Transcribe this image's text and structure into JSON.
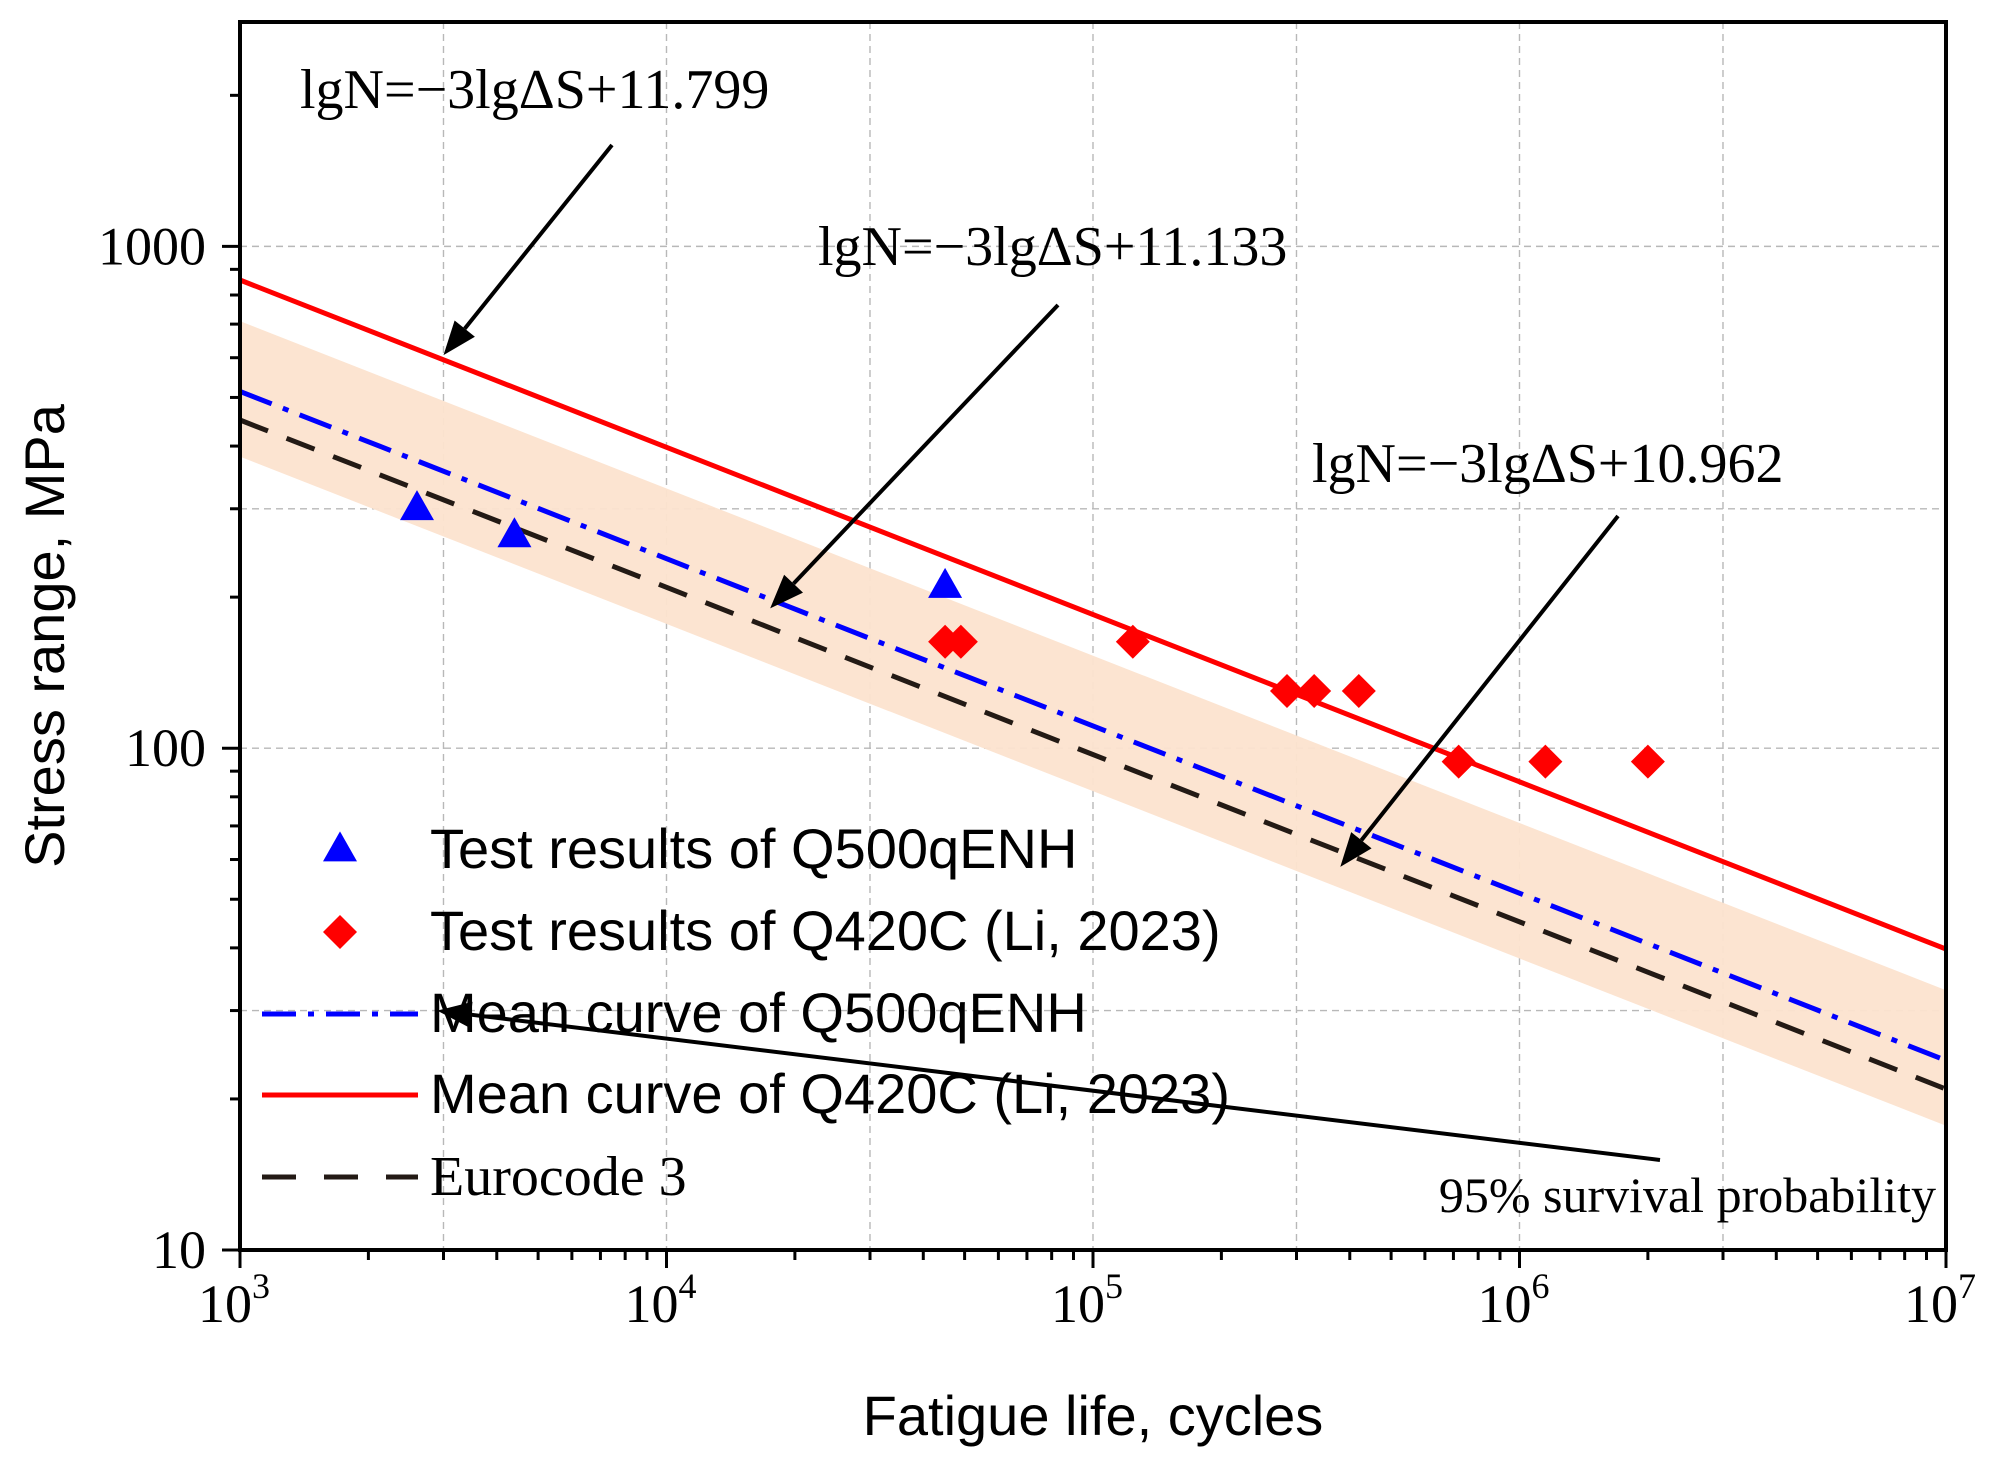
{
  "chart_data": {
    "type": "scatter",
    "scale": {
      "x": "log",
      "y": "log"
    },
    "xlim": [
      1000,
      10000000
    ],
    "ylim": [
      10,
      2800
    ],
    "xlabel": "Fatigue life, cycles",
    "ylabel": "Stress range, MPa",
    "x_ticks": [
      {
        "value": 1000,
        "base": "10",
        "exp": "3"
      },
      {
        "value": 10000,
        "base": "10",
        "exp": "4"
      },
      {
        "value": 100000,
        "base": "10",
        "exp": "5"
      },
      {
        "value": 1000000,
        "base": "10",
        "exp": "6"
      },
      {
        "value": 10000000,
        "base": "10",
        "exp": "7"
      }
    ],
    "y_ticks": [
      {
        "value": 10,
        "label": "10"
      },
      {
        "value": 100,
        "label": "100"
      },
      {
        "value": 1000,
        "label": "1000"
      }
    ],
    "grid": true,
    "series": [
      {
        "name": "Test results of Q500qENH",
        "kind": "scatter",
        "marker": "triangle",
        "color": "#0000ff",
        "points": [
          [
            2600,
            300
          ],
          [
            4400,
            265
          ],
          [
            45000,
            210
          ]
        ]
      },
      {
        "name": "Test results of Q420C (Li, 2023)",
        "kind": "scatter",
        "marker": "diamond",
        "color": "#ff0000",
        "points": [
          [
            45000,
            163
          ],
          [
            49000,
            163
          ],
          [
            124000,
            163
          ],
          [
            285000,
            130
          ],
          [
            330000,
            130
          ],
          [
            420000,
            130
          ],
          [
            720000,
            94
          ],
          [
            1150000,
            94
          ],
          [
            2000000,
            94
          ]
        ]
      },
      {
        "name": "Mean curve of Q500qENH",
        "kind": "line",
        "style": "dashdot",
        "color": "#0000ff",
        "slope": -3,
        "intercept": 11.133
      },
      {
        "name": "Mean curve of Q420C (Li, 2023)",
        "kind": "line",
        "style": "solid",
        "color": "#ff0000",
        "slope": -3,
        "intercept": 11.799
      },
      {
        "name": "Eurocode 3",
        "kind": "line",
        "style": "dashed",
        "color": "#231a15",
        "slope": -3,
        "intercept": 10.962
      }
    ],
    "band": {
      "color": "#fce3cf",
      "log_upper_offset": 0.14,
      "log_lower_offset": -0.13
    },
    "annotations": [
      {
        "text": "lgN=−3lgΔS+11.799",
        "target": [
          3000,
          607
        ]
      },
      {
        "text": "lgN=−3lgΔS+11.133",
        "target": [
          17500,
          190
        ]
      },
      {
        "text": "lgN=−3lgΔS+10.962",
        "target": [
          380000,
          58
        ]
      },
      {
        "text": "95% survival probability",
        "target": [
          2900,
          30
        ]
      }
    ],
    "legend_position": "bottom-left"
  }
}
